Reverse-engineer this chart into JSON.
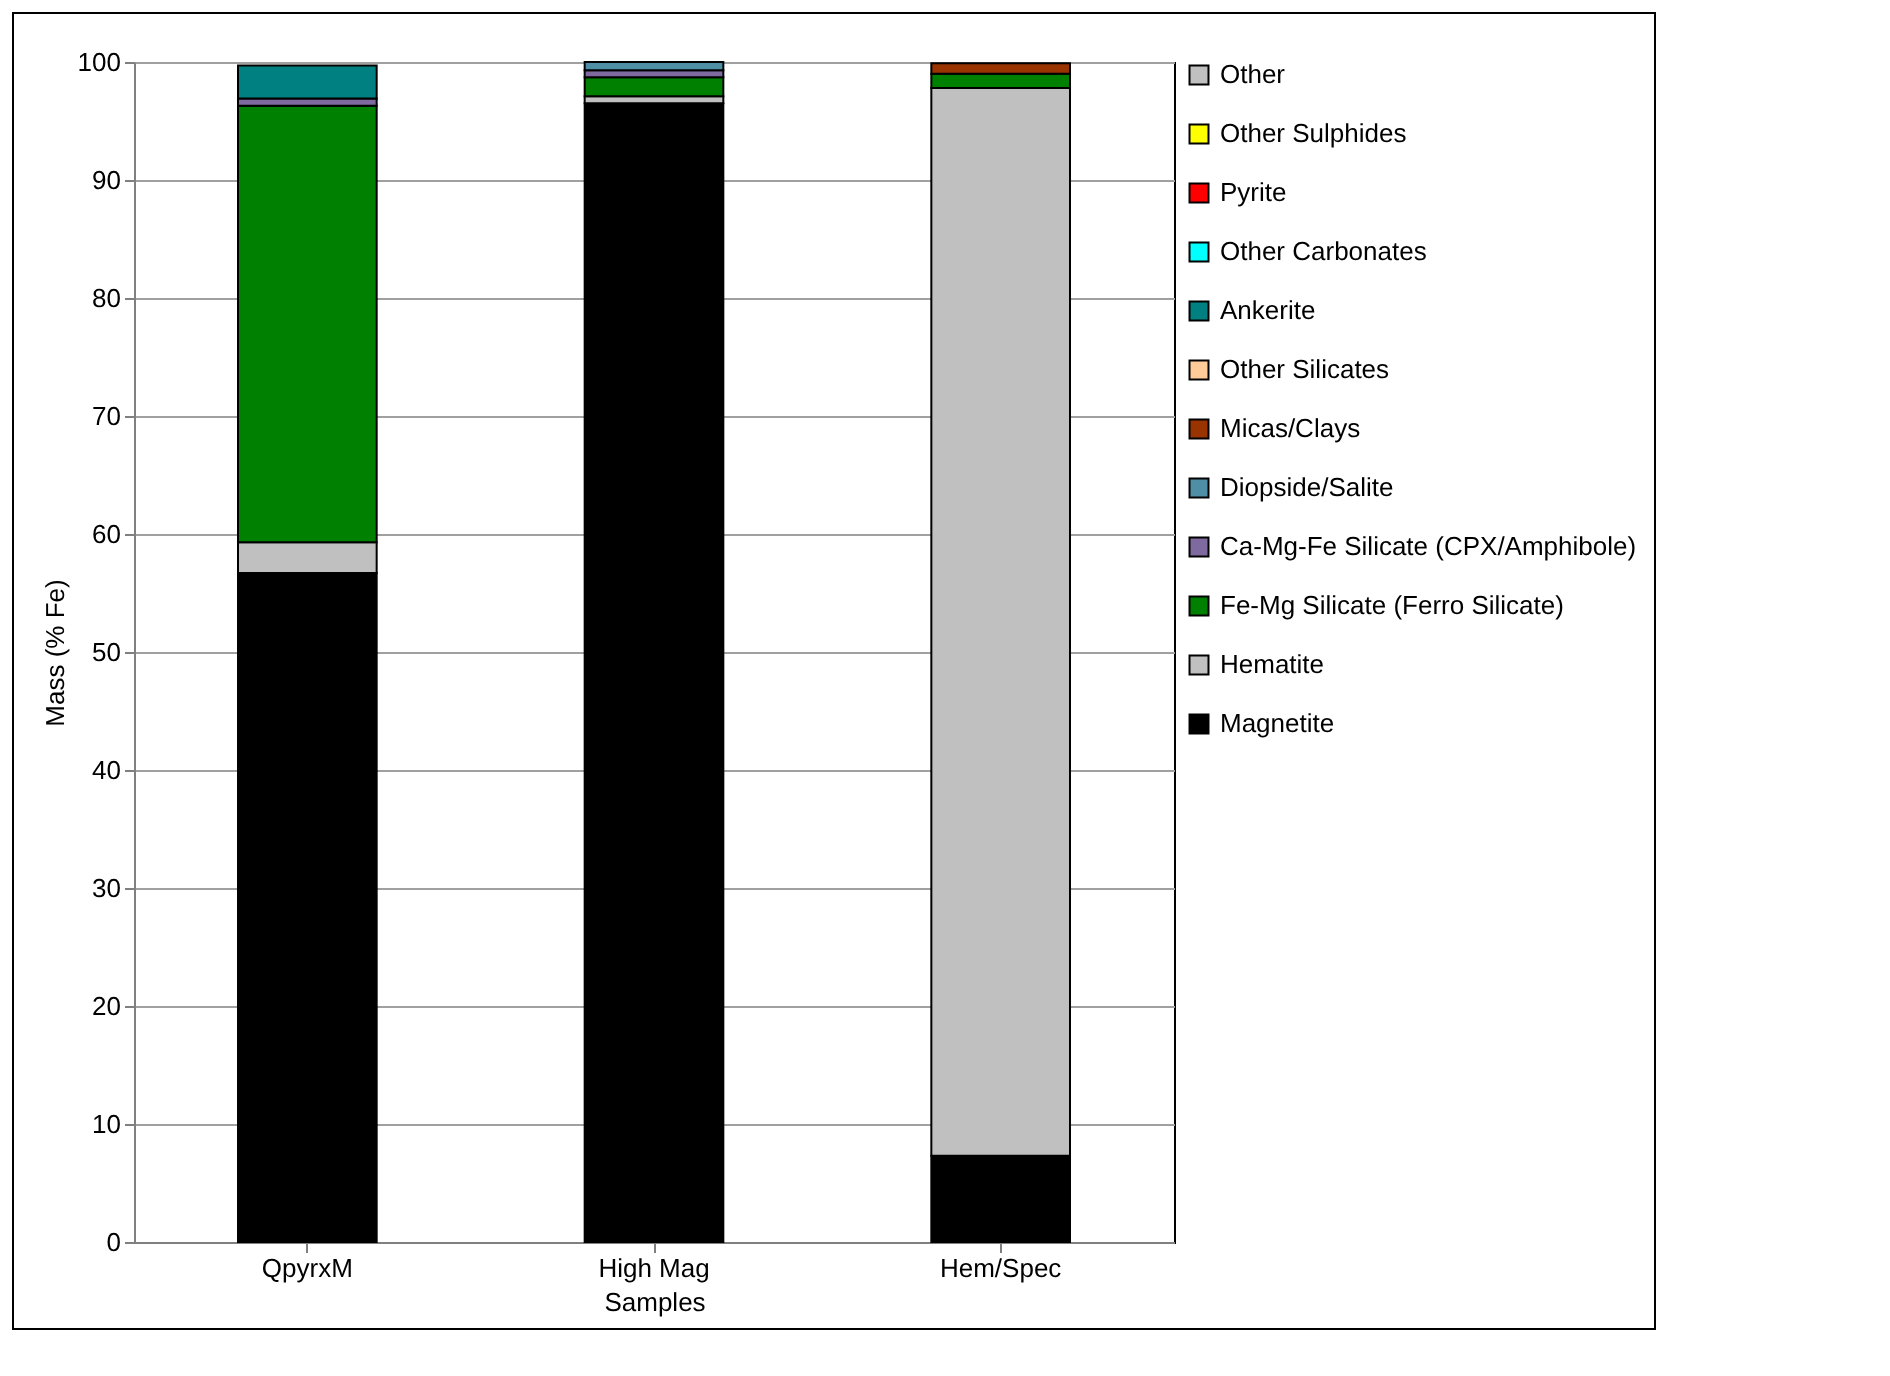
{
  "chart_data": {
    "type": "bar",
    "stacked": true,
    "xlabel": "Samples",
    "ylabel": "Mass (% Fe)",
    "categories": [
      "QpyrxM",
      "High Mag",
      "Hem/Spec"
    ],
    "ylim": [
      0,
      100
    ],
    "yticks": [
      0,
      10,
      20,
      30,
      40,
      50,
      60,
      70,
      80,
      90,
      100
    ],
    "grid": "y",
    "legend": "right",
    "series": [
      {
        "name": "Magnetite",
        "color": "#000000",
        "values": [
          56.7,
          96.5,
          7.3
        ]
      },
      {
        "name": "Hematite",
        "color": "#c0c0c0",
        "values": [
          2.6,
          0.6,
          90.5
        ]
      },
      {
        "name": "Fe-Mg Silicate (Ferro Silicate)",
        "color": "#008000",
        "values": [
          37.0,
          1.6,
          1.2
        ]
      },
      {
        "name": "Ca-Mg-Fe Silicate (CPX/Amphibole)",
        "color": "#7f6a9f",
        "values": [
          0.6,
          0.6,
          0
        ]
      },
      {
        "name": "Diopside/Salite",
        "color": "#4f8fa6",
        "values": [
          0,
          0.7,
          0
        ]
      },
      {
        "name": "Micas/Clays",
        "color": "#993300",
        "values": [
          0,
          0,
          0.9
        ]
      },
      {
        "name": "Other Silicates",
        "color": "#ffcc99",
        "values": [
          0,
          0,
          0
        ]
      },
      {
        "name": "Ankerite",
        "color": "#008080",
        "values": [
          2.8,
          0,
          0
        ]
      },
      {
        "name": "Other Carbonates",
        "color": "#00ffff",
        "values": [
          0,
          0,
          0
        ]
      },
      {
        "name": "Pyrite",
        "color": "#ff0000",
        "values": [
          0,
          0,
          0
        ]
      },
      {
        "name": "Other Sulphides",
        "color": "#ffff00",
        "values": [
          0,
          0,
          0
        ]
      },
      {
        "name": "Other",
        "color": "#c0c0c0",
        "values": [
          0,
          0,
          0
        ]
      }
    ]
  }
}
